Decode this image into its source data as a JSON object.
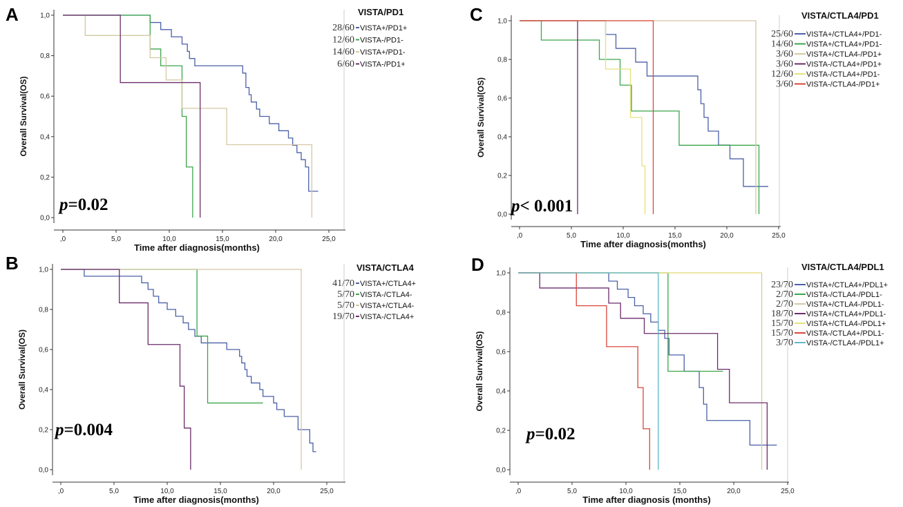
{
  "chart_data": [
    {
      "letter": "A",
      "type": "line",
      "subtype": "kaplan-meier",
      "title": "VISTA/PD1",
      "xlabel": "Time after diagnosis(months)",
      "ylabel": "Overall Survival(OS)",
      "xticks": [
        ",0",
        "5,0",
        "10,0",
        "15,0",
        "20,0",
        "25,0"
      ],
      "yticks": [
        "0,0",
        "0,2",
        "0,4",
        "0,6",
        "0,8",
        "1,0"
      ],
      "xlim": [
        0,
        25
      ],
      "ylim": [
        0,
        1
      ],
      "p_value": "=0.02",
      "series": [
        {
          "name": "VISTA+/PD1+",
          "count": "28/60",
          "color": "#4a5fa8",
          "steps": [
            [
              0,
              1
            ],
            [
              8.2,
              0.964
            ],
            [
              9.2,
              0.929
            ],
            [
              10.2,
              0.893
            ],
            [
              11.2,
              0.857
            ],
            [
              11.7,
              0.821
            ],
            [
              11.9,
              0.786
            ],
            [
              12.4,
              0.75
            ],
            [
              14,
              0.75
            ],
            [
              16.6,
              0.75
            ],
            [
              16.9,
              0.714
            ],
            [
              17.2,
              0.643
            ],
            [
              17.5,
              0.607
            ],
            [
              17.7,
              0.571
            ],
            [
              18.2,
              0.536
            ],
            [
              18.5,
              0.5
            ],
            [
              19.4,
              0.464
            ],
            [
              20.3,
              0.429
            ],
            [
              21.2,
              0.393
            ],
            [
              21.6,
              0.357
            ],
            [
              22,
              0.321
            ],
            [
              22.4,
              0.286
            ],
            [
              22.8,
              0.25
            ],
            [
              23.1,
              0.13
            ],
            [
              23.4,
              0.13
            ],
            [
              24,
              0.13
            ]
          ]
        },
        {
          "name": "VISTA-/PD1-",
          "count": "12/60",
          "color": "#3aa54a",
          "steps": [
            [
              0,
              1
            ],
            [
              8.2,
              0.833
            ],
            [
              9.2,
              0.75
            ],
            [
              11.2,
              0.5
            ],
            [
              11.6,
              0.25
            ],
            [
              12.2,
              0
            ]
          ]
        },
        {
          "name": "VISTA+/PD1-",
          "count": "14/60",
          "color": "#d4c8a2",
          "steps": [
            [
              0,
              1
            ],
            [
              2.1,
              0.9
            ],
            [
              6.2,
              0.9
            ],
            [
              8.2,
              0.79
            ],
            [
              9.2,
              0.79
            ],
            [
              9.7,
              0.68
            ],
            [
              11.2,
              0.54
            ],
            [
              15.4,
              0.36
            ],
            [
              23.4,
              0.36
            ],
            [
              23.4,
              0
            ]
          ]
        },
        {
          "name": "VISTA-/PD1+",
          "count": "6/60",
          "color": "#6b2a6a",
          "steps": [
            [
              0,
              1
            ],
            [
              5.4,
              0.667
            ],
            [
              12.9,
              0.667
            ],
            [
              12.9,
              0
            ]
          ]
        }
      ]
    },
    {
      "letter": "B",
      "type": "line",
      "subtype": "kaplan-meier",
      "title": "VISTA/CTLA4",
      "xlabel": "Time after diagnosis(months)",
      "ylabel": "Overall Survival(OS)",
      "xticks": [
        ",0",
        "5,0",
        "10,0",
        "15,0",
        "20,0",
        "25,0"
      ],
      "yticks": [
        "0,0",
        "0,2",
        "0,4",
        "0,6",
        "0,8",
        "1,0"
      ],
      "xlim": [
        0,
        25
      ],
      "ylim": [
        0,
        1
      ],
      "p_value": "=0.004",
      "series": [
        {
          "name": "VISTA+/CTLA4+",
          "count": "41/70",
          "color": "#4a5fa8",
          "steps": [
            [
              0,
              1
            ],
            [
              2.2,
              0.966
            ],
            [
              7.6,
              0.933
            ],
            [
              8.2,
              0.9
            ],
            [
              8.7,
              0.866
            ],
            [
              9.2,
              0.833
            ],
            [
              10,
              0.8
            ],
            [
              10.8,
              0.766
            ],
            [
              11.5,
              0.733
            ],
            [
              12,
              0.7
            ],
            [
              12.6,
              0.666
            ],
            [
              13.2,
              0.633
            ],
            [
              15.6,
              0.6
            ],
            [
              16.8,
              0.566
            ],
            [
              17,
              0.533
            ],
            [
              17.3,
              0.5
            ],
            [
              17.5,
              0.466
            ],
            [
              17.9,
              0.433
            ],
            [
              18.7,
              0.4
            ],
            [
              19,
              0.366
            ],
            [
              20,
              0.333
            ],
            [
              20.3,
              0.3
            ],
            [
              21,
              0.266
            ],
            [
              22.3,
              0.2
            ],
            [
              23.4,
              0.133
            ],
            [
              23.7,
              0.09
            ],
            [
              24,
              0.09
            ]
          ]
        },
        {
          "name": "VISTA-/CTLA4-",
          "count": "5/70",
          "color": "#3aa54a",
          "steps": [
            [
              0,
              1
            ],
            [
              12.8,
              1
            ],
            [
              12.8,
              0.667
            ],
            [
              13.8,
              0.333
            ],
            [
              19,
              0.333
            ]
          ]
        },
        {
          "name": "VISTA+/CTLA4-",
          "count": "5/70",
          "color": "#d4c8a2",
          "steps": [
            [
              0,
              1
            ],
            [
              22.6,
              1
            ],
            [
              22.6,
              0
            ]
          ]
        },
        {
          "name": "VISTA-/CTLA4+",
          "count": "19/70",
          "color": "#6b2a6a",
          "steps": [
            [
              0,
              1
            ],
            [
              5.5,
              0.833
            ],
            [
              8.2,
              0.625
            ],
            [
              11.2,
              0.417
            ],
            [
              11.6,
              0.208
            ],
            [
              12.2,
              0
            ]
          ]
        }
      ]
    },
    {
      "letter": "C",
      "type": "line",
      "subtype": "kaplan-meier",
      "title": "VISTA/CTLA4/PD1",
      "xlabel": "Time after diagnosis(months)",
      "ylabel": "Overall Survival(OS)",
      "xticks": [
        ",0",
        "5,0",
        "10,0",
        "15,0",
        "20,0",
        "25,0"
      ],
      "yticks": [
        "0,0",
        "0,2",
        "0,4",
        "0,6",
        "0,8",
        "1,0"
      ],
      "xlim": [
        0,
        25
      ],
      "ylim": [
        0,
        1
      ],
      "p_value": "< 0.001",
      "series": [
        {
          "name": "VISTA+/CTLA4+/PD1-",
          "count": "25/60",
          "color": "#4a5fa8",
          "steps": [
            [
              0,
              1
            ],
            [
              8.3,
              0.929
            ],
            [
              9.3,
              0.857
            ],
            [
              11.2,
              0.786
            ],
            [
              12.3,
              0.714
            ],
            [
              16.9,
              0.714
            ],
            [
              17.2,
              0.643
            ],
            [
              17.5,
              0.571
            ],
            [
              17.8,
              0.5
            ],
            [
              18.2,
              0.429
            ],
            [
              19.2,
              0.357
            ],
            [
              20.3,
              0.286
            ],
            [
              21.6,
              0.143
            ],
            [
              24,
              0.143
            ]
          ]
        },
        {
          "name": "VISTA+/CTLA4+/PD1-",
          "count": "14/60",
          "color": "#3aa54a",
          "steps": [
            [
              0,
              1
            ],
            [
              2.1,
              0.9
            ],
            [
              7.7,
              0.8
            ],
            [
              8.3,
              0.8
            ],
            [
              9.7,
              0.667
            ],
            [
              10.8,
              0.533
            ],
            [
              15.4,
              0.356
            ],
            [
              22.8,
              0.356
            ],
            [
              23.1,
              0
            ]
          ]
        },
        {
          "name": "VISTA+/CTLA4-/PD1+",
          "count": "3/60",
          "color": "#d4c8a2",
          "steps": [
            [
              0,
              1
            ],
            [
              22.8,
              1
            ],
            [
              22.8,
              0
            ]
          ]
        },
        {
          "name": "VISTA-/CTLA4+/PD1+",
          "count": "3/60",
          "color": "#6b2a6a",
          "steps": [
            [
              0,
              1
            ],
            [
              5.6,
              1
            ],
            [
              5.6,
              0
            ]
          ]
        },
        {
          "name": "VISTA-/CTLA4+/PD1-",
          "count": "12/60",
          "color": "#e8e07a",
          "steps": [
            [
              0,
              1
            ],
            [
              8.3,
              0.75
            ],
            [
              9.8,
              0.75
            ],
            [
              10.7,
              0.5
            ],
            [
              11.8,
              0.25
            ],
            [
              12.1,
              0
            ]
          ]
        },
        {
          "name": "VISTA-/CTLA4-/PD1+",
          "count": "3/60",
          "color": "#d9453a",
          "steps": [
            [
              0,
              1
            ],
            [
              12.9,
              1
            ],
            [
              12.9,
              0
            ]
          ]
        }
      ]
    },
    {
      "letter": "D",
      "type": "line",
      "subtype": "kaplan-meier",
      "title": "VISTA/CTLA4/PDL1",
      "xlabel": "Time after diagnosis (months)",
      "ylabel": "Overall Survival(OS)",
      "xticks": [
        ",0",
        "5,0",
        "10,0",
        "15,0",
        "20,0",
        "25,0"
      ],
      "yticks": [
        "0,0",
        "0,2",
        "0,4",
        "0,6",
        "0,8",
        "1,0"
      ],
      "xlim": [
        0,
        25
      ],
      "ylim": [
        0,
        1
      ],
      "p_value": "=0.02",
      "series": [
        {
          "name": "VISTA+/CTLA4+/PDL1+",
          "count": "23/70",
          "color": "#4a5fa8",
          "steps": [
            [
              0,
              1
            ],
            [
              8.4,
              0.958
            ],
            [
              9.2,
              0.917
            ],
            [
              10.2,
              0.875
            ],
            [
              10.8,
              0.833
            ],
            [
              11.6,
              0.792
            ],
            [
              12.3,
              0.75
            ],
            [
              13,
              0.708
            ],
            [
              13.6,
              0.667
            ],
            [
              14,
              0.583
            ],
            [
              15.4,
              0.5
            ],
            [
              16.8,
              0.417
            ],
            [
              17.2,
              0.333
            ],
            [
              17.5,
              0.25
            ],
            [
              19.3,
              0.25
            ],
            [
              21.5,
              0.125
            ],
            [
              24,
              0.125
            ]
          ]
        },
        {
          "name": "VISTA-/CTLA4-/PDL1-",
          "count": "2/70",
          "color": "#3aa54a",
          "steps": [
            [
              0,
              1
            ],
            [
              13.9,
              1
            ],
            [
              13.9,
              0.5
            ],
            [
              19,
              0.5
            ]
          ]
        },
        {
          "name": "VISTA+/CTLA4-/PDL1-",
          "count": "2/70",
          "color": "#d4c8a2",
          "steps": [
            [
              0,
              1
            ],
            [
              22.6,
              1
            ],
            [
              22.6,
              0
            ]
          ]
        },
        {
          "name": "VISTA+/CTLA4+/PDL1-",
          "count": "18/70",
          "color": "#6b2a6a",
          "steps": [
            [
              0,
              1
            ],
            [
              2,
              0.923
            ],
            [
              8.3,
              0.923
            ],
            [
              8.4,
              0.846
            ],
            [
              9.5,
              0.769
            ],
            [
              11.2,
              0.769
            ],
            [
              11.7,
              0.692
            ],
            [
              12.3,
              0.692
            ],
            [
              18.5,
              0.51
            ],
            [
              19.6,
              0.34
            ],
            [
              22.8,
              0.34
            ],
            [
              23.1,
              0
            ]
          ]
        },
        {
          "name": "VISTA+/CTLA4-/PDL1+",
          "count": "15/70",
          "color": "#e8e07a",
          "steps": [
            [
              0,
              1
            ],
            [
              13.6,
              1
            ],
            [
              22.6,
              1
            ]
          ]
        },
        {
          "name": "VISTA-/CTLA4+/PDL1-",
          "count": "15/70",
          "color": "#d9453a",
          "steps": [
            [
              0,
              1
            ],
            [
              5.4,
              0.833
            ],
            [
              8.2,
              0.625
            ],
            [
              11.1,
              0.417
            ],
            [
              11.6,
              0.208
            ],
            [
              12.2,
              0
            ]
          ]
        },
        {
          "name": "VISTA-/CTLA4-/PDL1+",
          "count": "3/70",
          "color": "#5fb8c8",
          "steps": [
            [
              0,
              1
            ],
            [
              13,
              1
            ],
            [
              13,
              0
            ]
          ]
        }
      ]
    }
  ]
}
